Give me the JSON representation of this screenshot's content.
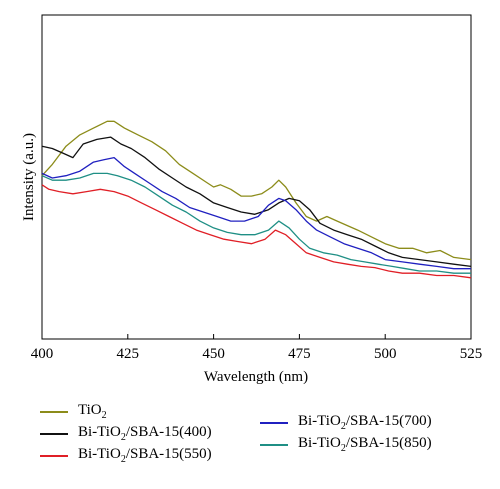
{
  "chart_data": {
    "type": "line",
    "title": "",
    "xlabel": "Wavelength (nm)",
    "ylabel": "Intensity (a.u.)",
    "xlim": [
      400,
      525
    ],
    "ylim": [
      0,
      1
    ],
    "x_ticks": [
      "400",
      "425",
      "450",
      "475",
      "500",
      "525"
    ],
    "x_tick_values": [
      400,
      425,
      450,
      475,
      500,
      525
    ],
    "y_ticks_shown": false,
    "grid": false,
    "legend_position": "below",
    "series": [
      {
        "name": "TiO2",
        "name_main": "TiO",
        "name_sub": "2",
        "name_rest": "",
        "color": "#8c8c1a",
        "x": [
          400,
          403,
          407,
          411,
          415,
          419,
          421,
          424,
          428,
          432,
          436,
          440,
          444,
          448,
          450,
          452,
          455,
          458,
          461,
          464,
          467,
          469,
          471,
          474,
          477,
          480,
          483,
          486,
          489,
          492,
          496,
          500,
          504,
          508,
          512,
          516,
          520,
          525
        ],
        "values": [
          0.42,
          0.47,
          0.55,
          0.6,
          0.63,
          0.66,
          0.66,
          0.63,
          0.6,
          0.57,
          0.53,
          0.47,
          0.43,
          0.39,
          0.37,
          0.38,
          0.36,
          0.33,
          0.33,
          0.34,
          0.37,
          0.4,
          0.37,
          0.3,
          0.24,
          0.22,
          0.24,
          0.22,
          0.2,
          0.18,
          0.15,
          0.12,
          0.1,
          0.1,
          0.08,
          0.09,
          0.06,
          0.05
        ]
      },
      {
        "name": "Bi-TiO2/SBA-15(400)",
        "name_main": "Bi-TiO",
        "name_sub": "2",
        "name_rest": "/SBA-15(400)",
        "color": "#111111",
        "x": [
          400,
          403,
          406,
          409,
          412,
          416,
          420,
          423,
          426,
          430,
          434,
          438,
          442,
          446,
          450,
          454,
          458,
          462,
          466,
          469,
          472,
          475,
          478,
          481,
          485,
          489,
          493,
          497,
          501,
          505,
          510,
          515,
          520,
          525
        ],
        "values": [
          0.55,
          0.54,
          0.52,
          0.5,
          0.56,
          0.58,
          0.59,
          0.56,
          0.54,
          0.5,
          0.45,
          0.41,
          0.37,
          0.34,
          0.3,
          0.28,
          0.26,
          0.25,
          0.27,
          0.3,
          0.32,
          0.31,
          0.27,
          0.21,
          0.18,
          0.16,
          0.14,
          0.11,
          0.08,
          0.06,
          0.05,
          0.04,
          0.03,
          0.02
        ]
      },
      {
        "name": "Bi-TiO2/SBA-15(550)",
        "name_main": "Bi-TiO",
        "name_sub": "2",
        "name_rest": "/SBA-15(550)",
        "color": "#e01f26",
        "x": [
          400,
          402,
          405,
          409,
          413,
          417,
          421,
          425,
          429,
          433,
          437,
          441,
          445,
          449,
          453,
          457,
          461,
          465,
          468,
          471,
          474,
          477,
          481,
          485,
          489,
          493,
          497,
          501,
          505,
          510,
          515,
          520,
          525
        ],
        "values": [
          0.38,
          0.36,
          0.35,
          0.34,
          0.35,
          0.36,
          0.35,
          0.33,
          0.3,
          0.27,
          0.24,
          0.21,
          0.18,
          0.16,
          0.14,
          0.13,
          0.12,
          0.14,
          0.18,
          0.16,
          0.12,
          0.08,
          0.06,
          0.04,
          0.03,
          0.02,
          0.015,
          0.0,
          -0.01,
          -0.01,
          -0.02,
          -0.02,
          -0.03
        ]
      },
      {
        "name": "Bi-TiO2/SBA-15(700)",
        "name_main": "Bi-TiO",
        "name_sub": "2",
        "name_rest": "/SBA-15(700)",
        "color": "#2020c0",
        "x": [
          400,
          403,
          407,
          411,
          415,
          418,
          421,
          424,
          427,
          431,
          435,
          439,
          443,
          447,
          451,
          455,
          459,
          463,
          466,
          469,
          471,
          474,
          477,
          480,
          484,
          488,
          492,
          496,
          500,
          505,
          510,
          515,
          520,
          525
        ],
        "values": [
          0.43,
          0.41,
          0.42,
          0.44,
          0.48,
          0.49,
          0.5,
          0.46,
          0.43,
          0.39,
          0.35,
          0.32,
          0.28,
          0.26,
          0.24,
          0.22,
          0.22,
          0.24,
          0.29,
          0.32,
          0.31,
          0.27,
          0.22,
          0.18,
          0.15,
          0.12,
          0.1,
          0.08,
          0.05,
          0.04,
          0.03,
          0.02,
          0.01,
          0.01
        ]
      },
      {
        "name": "Bi-TiO2/SBA-15(850)",
        "name_main": "Bi-TiO",
        "name_sub": "2",
        "name_rest": "/SBA-15(850)",
        "color": "#1f8f85",
        "x": [
          400,
          403,
          407,
          411,
          415,
          419,
          422,
          426,
          430,
          434,
          438,
          442,
          446,
          450,
          454,
          458,
          462,
          466,
          469,
          472,
          475,
          478,
          482,
          486,
          490,
          494,
          498,
          502,
          506,
          510,
          515,
          520,
          525
        ],
        "values": [
          0.42,
          0.4,
          0.4,
          0.41,
          0.43,
          0.43,
          0.42,
          0.4,
          0.37,
          0.33,
          0.29,
          0.26,
          0.22,
          0.19,
          0.17,
          0.16,
          0.16,
          0.18,
          0.22,
          0.19,
          0.14,
          0.1,
          0.08,
          0.07,
          0.05,
          0.04,
          0.03,
          0.02,
          0.01,
          0.0,
          0.0,
          -0.01,
          -0.01
        ]
      }
    ]
  }
}
